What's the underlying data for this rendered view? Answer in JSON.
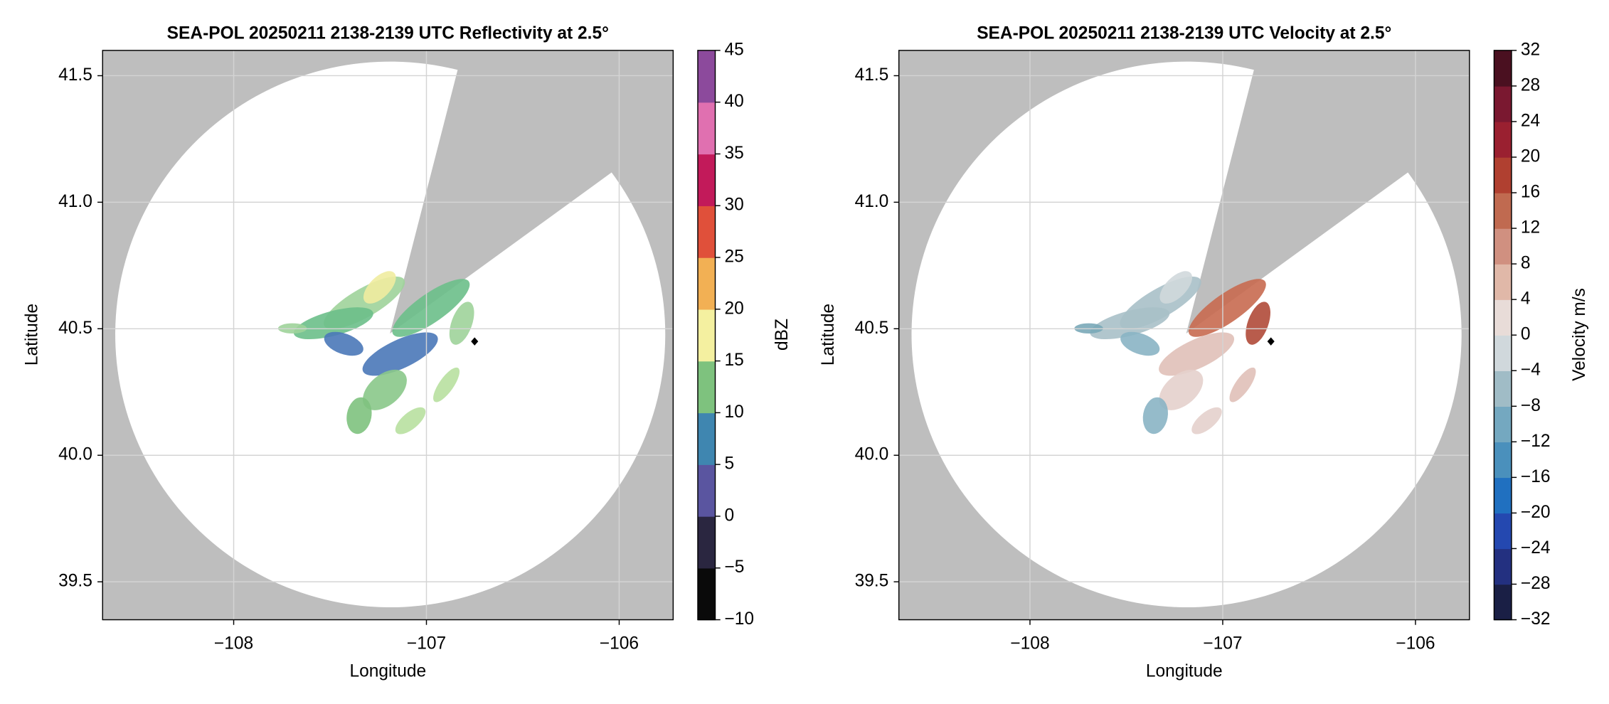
{
  "chart_data": [
    {
      "type": "radar-ppi",
      "title": "SEA-POL 20250211 2138-2139 UTC Reflectivity at 2.5°",
      "xlabel": "Longitude",
      "ylabel": "Latitude",
      "xlim": [
        -108.68,
        -105.72
      ],
      "ylim": [
        39.35,
        41.6
      ],
      "xticks": [
        {
          "value": -108,
          "label": "−108"
        },
        {
          "value": -107,
          "label": "−107"
        },
        {
          "value": -106,
          "label": "−106"
        }
      ],
      "yticks": [
        39.5,
        {
          "value": 40,
          "label": "40.0"
        },
        40.5,
        {
          "value": 41,
          "label": "41.0"
        },
        41.5
      ],
      "grid": true,
      "points": {
        "x": [
          -106.75
        ],
        "y": [
          40.45
        ],
        "color": "#000000"
      },
      "colorbar": {
        "label": "dBZ",
        "lim": [
          -10,
          45
        ],
        "ticks": [
          {
            "value": -10,
            "label": "−10"
          },
          {
            "value": -5,
            "label": "−5"
          },
          0,
          5,
          10,
          15,
          20,
          25,
          30,
          35,
          40,
          45
        ],
        "colors": [
          "#0a0a0a",
          "#2a2640",
          "#5a55a0",
          "#3f86b0",
          "#7ec27e",
          "#f4f0a0",
          "#f2b054",
          "#e0503a",
          "#c21a5a",
          "#e070b0",
          "#8c4a9c"
        ]
      }
    },
    {
      "type": "radar-ppi",
      "title": "SEA-POL 20250211 2138-2139 UTC Velocity at 2.5°",
      "xlabel": "Longitude",
      "ylabel": "Latitude",
      "xlim": [
        -108.68,
        -105.72
      ],
      "ylim": [
        39.35,
        41.6
      ],
      "xticks": [
        {
          "value": -108,
          "label": "−108"
        },
        {
          "value": -107,
          "label": "−107"
        },
        {
          "value": -106,
          "label": "−106"
        }
      ],
      "yticks": [
        39.5,
        {
          "value": 40,
          "label": "40.0"
        },
        40.5,
        {
          "value": 41,
          "label": "41.0"
        },
        41.5
      ],
      "grid": true,
      "points": {
        "x": [
          -106.75
        ],
        "y": [
          40.45
        ],
        "color": "#000000"
      },
      "colorbar": {
        "label": "Velocity m/s",
        "lim": [
          -32,
          32
        ],
        "ticks": [
          {
            "value": -32,
            "label": "−32"
          },
          {
            "value": -28,
            "label": "−28"
          },
          {
            "value": -24,
            "label": "−24"
          },
          {
            "value": -20,
            "label": "−20"
          },
          {
            "value": -16,
            "label": "−16"
          },
          {
            "value": -12,
            "label": "−12"
          },
          {
            "value": -8,
            "label": "−8"
          },
          {
            "value": -4,
            "label": "−4"
          },
          0,
          4,
          8,
          12,
          16,
          20,
          24,
          28,
          32
        ],
        "colors": [
          "#1a1f45",
          "#233080",
          "#2448b0",
          "#2070c0",
          "#4a90bc",
          "#74a8c0",
          "#a0bcc6",
          "#d0d8dc",
          "#e8dcd8",
          "#e0b8a8",
          "#d09080",
          "#c06a50",
          "#b04030",
          "#9a2030",
          "#7a1830",
          "#4a1020"
        ]
      }
    }
  ]
}
